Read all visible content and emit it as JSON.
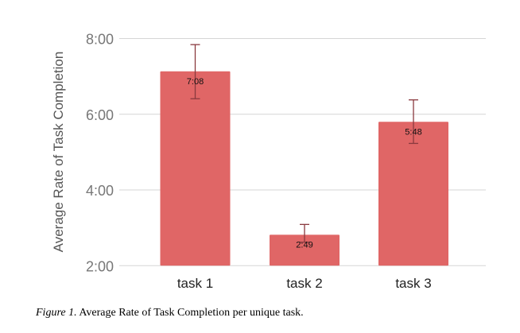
{
  "chart_data": {
    "type": "bar",
    "title": "",
    "xlabel": "",
    "ylabel": "Average Rate of Task Completion",
    "categories": [
      "task 1",
      "task 2",
      "task 3"
    ],
    "values_minutes": [
      7.133,
      2.817,
      5.8
    ],
    "data_labels": [
      "7:08",
      "2:49",
      "5:48"
    ],
    "error_bars_minutes": [
      [
        6.41,
        7.84
      ],
      [
        2.62,
        3.09
      ],
      [
        5.23,
        6.38
      ]
    ],
    "ylim_minutes": [
      2,
      8
    ],
    "yticks_minutes": [
      2,
      4,
      6,
      8
    ],
    "ytick_labels": [
      "2:00",
      "4:00",
      "6:00",
      "8:00"
    ],
    "grid": true,
    "legend": "none",
    "colors": {
      "bar": "#e06666",
      "error": "#8a3a3f",
      "grid": "#d6d6d6",
      "tick_text": "#777777"
    }
  },
  "caption": {
    "label": "Figure 1.",
    "text": " Average Rate of Task Completion per unique task."
  }
}
